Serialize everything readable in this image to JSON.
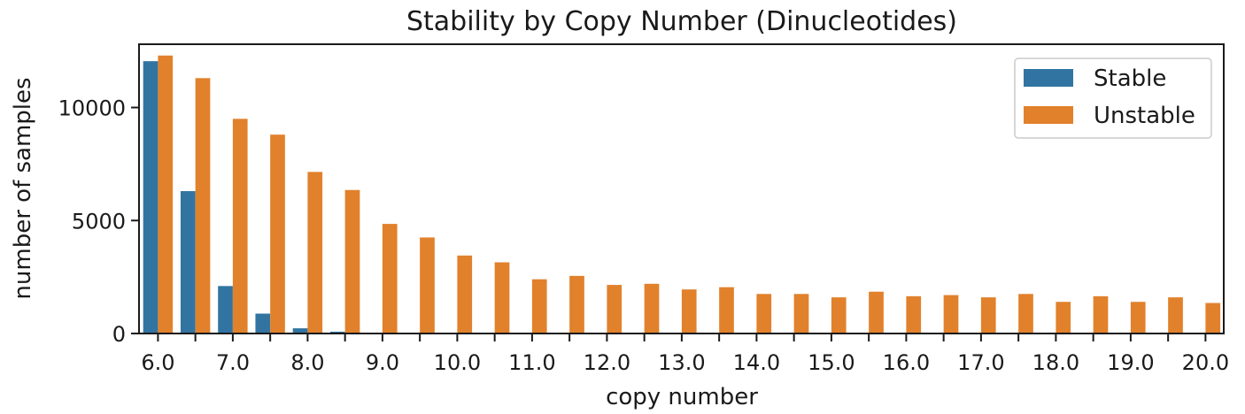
{
  "chart_data": {
    "type": "bar",
    "title": "Stability by Copy Number (Dinucleotides)",
    "xlabel": "copy number",
    "ylabel": "number of samples",
    "categories": [
      "6.0",
      "6.5",
      "7.0",
      "7.5",
      "8.0",
      "8.5",
      "9.0",
      "9.5",
      "10.0",
      "10.5",
      "11.0",
      "11.5",
      "12.0",
      "12.5",
      "13.0",
      "13.5",
      "14.0",
      "14.5",
      "15.0",
      "15.5",
      "16.0",
      "16.5",
      "17.0",
      "17.5",
      "18.0",
      "18.5",
      "19.0",
      "19.5",
      "20.0"
    ],
    "xtick_labels": [
      "6.0",
      "7.0",
      "8.0",
      "9.0",
      "10.0",
      "11.0",
      "12.0",
      "13.0",
      "14.0",
      "15.0",
      "16.0",
      "17.0",
      "18.0",
      "19.0",
      "20.0"
    ],
    "yticks": [
      0,
      5000,
      10000
    ],
    "ytick_labels": [
      "0",
      "5000",
      "10000"
    ],
    "ylim": [
      0,
      12800
    ],
    "series": [
      {
        "name": "Stable",
        "color": "#3274a1",
        "values": [
          12050,
          6300,
          2100,
          880,
          230,
          80,
          10,
          0,
          0,
          0,
          0,
          0,
          0,
          0,
          0,
          0,
          0,
          0,
          0,
          0,
          0,
          0,
          0,
          0,
          0,
          0,
          0,
          0,
          0
        ]
      },
      {
        "name": "Unstable",
        "color": "#e1812c",
        "values": [
          12300,
          11300,
          9500,
          8800,
          7150,
          6350,
          4850,
          4250,
          3450,
          3150,
          2400,
          2550,
          2150,
          2200,
          1950,
          2050,
          1750,
          1750,
          1600,
          1850,
          1650,
          1700,
          1600,
          1750,
          1400,
          1650,
          1400,
          1600,
          1350
        ]
      }
    ],
    "legend": {
      "placement": "top-right"
    },
    "grid": false
  }
}
